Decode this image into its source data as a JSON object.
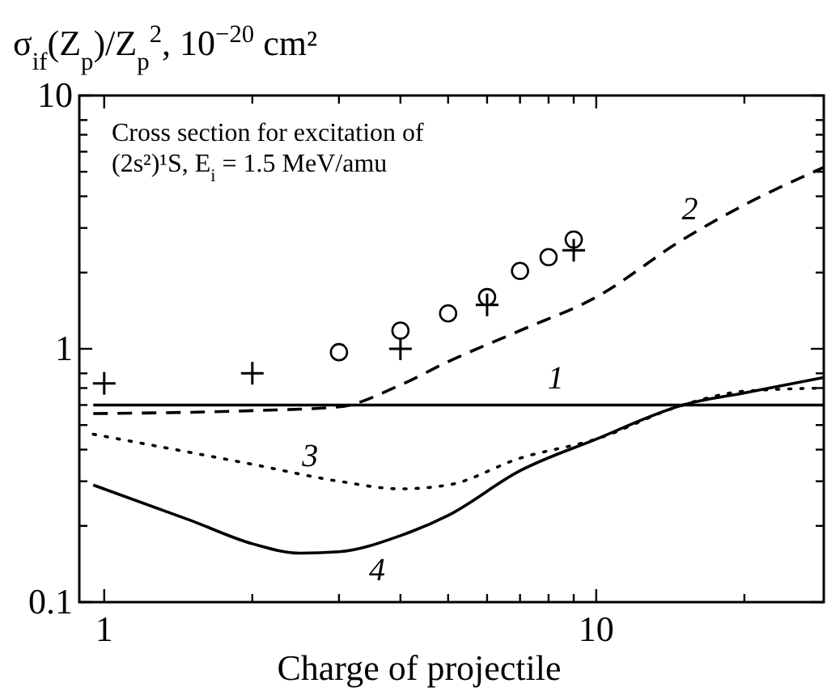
{
  "chart_data": {
    "type": "line",
    "xlabel": "Charge of projectile",
    "ylabel": "σ$_{if}$(Z$_{p}$)/Z$_{p}$$^{2}$, 10$^{−20}$ cm²",
    "log": "xy",
    "xlim": [
      0.89,
      29
    ],
    "ylim": [
      0.1,
      10
    ],
    "xticks": [
      1,
      {
        "value": 2,
        "label": null
      },
      {
        "value": 3,
        "label": null
      },
      {
        "value": 4,
        "label": null
      },
      {
        "value": 5,
        "label": null
      },
      {
        "value": 6,
        "label": null
      },
      {
        "value": 7,
        "label": null
      },
      {
        "value": 8,
        "label": null
      },
      {
        "value": 9,
        "label": null
      },
      10,
      {
        "value": 20,
        "label": null
      }
    ],
    "yticks": [
      0.1,
      {
        "value": 0.2,
        "label": null
      },
      {
        "value": 0.3,
        "label": null
      },
      {
        "value": 0.4,
        "label": null
      },
      {
        "value": 0.5,
        "label": null
      },
      {
        "value": 0.6,
        "label": null
      },
      {
        "value": 0.7,
        "label": null
      },
      {
        "value": 0.8,
        "label": null
      },
      1,
      {
        "value": 2,
        "label": null
      },
      {
        "value": 3,
        "label": null
      },
      {
        "value": 4,
        "label": null
      },
      {
        "value": 5,
        "label": null
      },
      {
        "value": 6,
        "label": null
      },
      {
        "value": 7,
        "label": null
      },
      {
        "value": 8,
        "label": null
      },
      10
    ],
    "annotations": [
      "Cross section for excitation of (2s²)¹S, E$_{i}$ = 1.5 MeV/amu"
    ],
    "series": [
      {
        "name": "1",
        "color": "#000000",
        "line_style": "solid",
        "x": [
          0.95,
          29
        ],
        "values": [
          0.6,
          0.6
        ]
      },
      {
        "name": "2",
        "color": "#000000",
        "line_style": "dashed",
        "x": [
          0.95,
          2,
          3,
          4,
          5,
          7,
          10,
          15,
          20,
          29
        ],
        "values": [
          0.555,
          0.57,
          0.59,
          0.72,
          0.89,
          1.18,
          1.6,
          2.7,
          3.7,
          5.2
        ]
      },
      {
        "name": "3",
        "color": "#000000",
        "line_style": "dotted",
        "x": [
          0.95,
          2,
          3,
          4,
          5,
          7,
          10,
          15,
          20,
          29
        ],
        "values": [
          0.46,
          0.35,
          0.3,
          0.28,
          0.29,
          0.37,
          0.44,
          0.6,
          0.68,
          0.7
        ]
      },
      {
        "name": "4",
        "color": "#000000",
        "line_style": "solid",
        "x": [
          0.95,
          1.5,
          2,
          2.5,
          3,
          4,
          5,
          7,
          10,
          15,
          20,
          29
        ],
        "values": [
          0.29,
          0.21,
          0.17,
          0.156,
          0.158,
          0.183,
          0.22,
          0.33,
          0.44,
          0.6,
          0.67,
          0.77
        ]
      },
      {
        "type": "scatter",
        "marker": "circle",
        "color": "#000000",
        "x": [
          3,
          4,
          5,
          6,
          7,
          8,
          9
        ],
        "values": [
          0.97,
          1.18,
          1.38,
          1.6,
          2.03,
          2.3,
          2.7
        ]
      },
      {
        "type": "scatter",
        "marker": "cross",
        "color": "#000000",
        "x": [
          1,
          2,
          4,
          6,
          9
        ],
        "values": [
          0.73,
          0.8,
          1.0,
          1.49,
          2.45
        ]
      }
    ]
  }
}
